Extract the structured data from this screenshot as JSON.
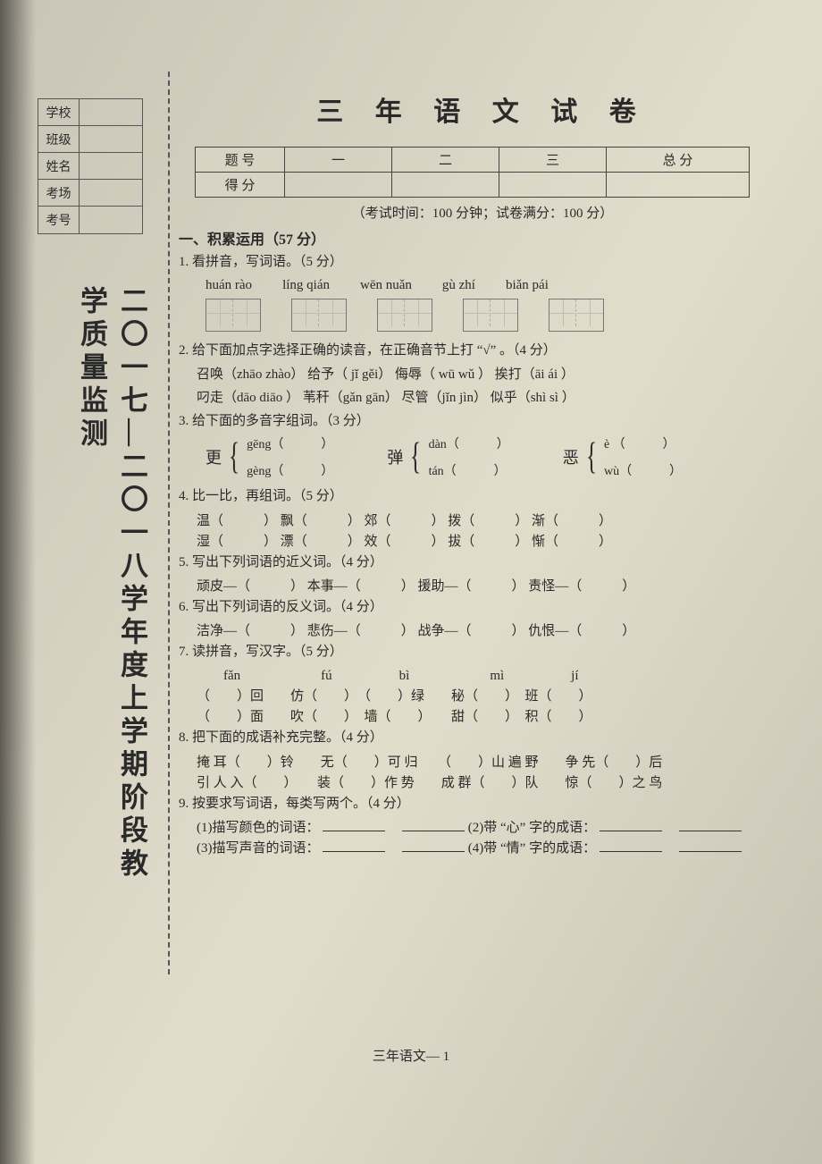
{
  "sidebar": {
    "rows": [
      "学校",
      "班级",
      "姓名",
      "考场",
      "考号"
    ],
    "vertical_title": "二〇一七—二〇一八学年度上学期阶段教学质量监测"
  },
  "header": {
    "title": "三 年 语 文 试 卷",
    "score_labels": {
      "row1": "题 号",
      "row2": "得 分",
      "cols": [
        "一",
        "二",
        "三"
      ],
      "total": "总  分"
    },
    "exam_info": "（考试时间：100 分钟；试卷满分：100 分）"
  },
  "section1": {
    "heading": "一、积累运用（57 分）",
    "q1": {
      "prompt": "1. 看拼音，写词语。（5 分）",
      "pinyin": [
        "huán  rào",
        "líng qián",
        "wēn  nuǎn",
        "gù  zhí",
        "biǎn  pái"
      ],
      "box_cells": [
        2,
        2,
        2,
        2,
        2
      ]
    },
    "q2": {
      "prompt": "2. 给下面加点字选择正确的读音，在正确音节上打 “√” 。（4 分）",
      "line1": "召唤（zhāo  zhào）   给予（ jǐ  gěi）   侮辱（ wū  wǔ ）   挨打（āi  ái ）",
      "line2": "叼走（dāo  diāo ）   苇秆（gǎn  gān）   尽管（jǐn  jìn）   似乎（shì  sì ）"
    },
    "q3": {
      "prompt": "3. 给下面的多音字组词。（3 分）",
      "groups": [
        {
          "char": "更",
          "a": "gēng（　　　）",
          "b": "gèng（　　　）"
        },
        {
          "char": "弹",
          "a": "dàn（　　　）",
          "b": "tán（　　　）"
        },
        {
          "char": "恶",
          "a": "è （　　　）",
          "b": "wù（　　　）"
        }
      ]
    },
    "q4": {
      "prompt": "4. 比一比，再组词。（5 分）",
      "line1": "温（　　　）  飘（　　　）  郊（　　　）  拨（　　　）  渐（　　　）",
      "line2": "湿（　　　）  漂（　　　）  效（　　　）  拔（　　　）  惭（　　　）"
    },
    "q5": {
      "prompt": "5. 写出下列词语的近义词。（4 分）",
      "line": "顽皮—（　　　）  本事—（　　　）  援助—（　　　）  责怪—（　　　）"
    },
    "q6": {
      "prompt": "6. 写出下列词语的反义词。（4 分）",
      "line": "洁净—（　　　）  悲伤—（　　　）  战争—（　　　）  仇恨—（　　　）"
    },
    "q7": {
      "prompt": "7. 读拼音，写汉字。（5 分）",
      "header": "　　fǎn　　　　　　fú　　　　　bì　　　　　　mì　　　　　jí",
      "line1": "（　　）回　　仿（　　）　（　　）绿　　秘（　　）　班（　　）",
      "line2": "（　　）面　　吹（　　）　墙（　　）　　甜（　　）　积（　　）"
    },
    "q8": {
      "prompt": "8. 把下面的成语补充完整。（4 分）",
      "line1": "掩 耳（　　）铃　　无（　　）可 归　　（　　）山 遍 野　　争 先（　　）后",
      "line2": "引 人 入（　　）　　装（　　）作 势　　成 群（　　）队　　惊（　　）之 鸟"
    },
    "q9": {
      "prompt": "9. 按要求写词语，每类写两个。（4 分）",
      "r1a": "(1)描写颜色的词语：",
      "r1b": "(2)带 “心” 字的成语：",
      "r2a": "(3)描写声音的词语：",
      "r2b": "(4)带 “情” 字的成语："
    }
  },
  "footer": "三年语文— 1"
}
